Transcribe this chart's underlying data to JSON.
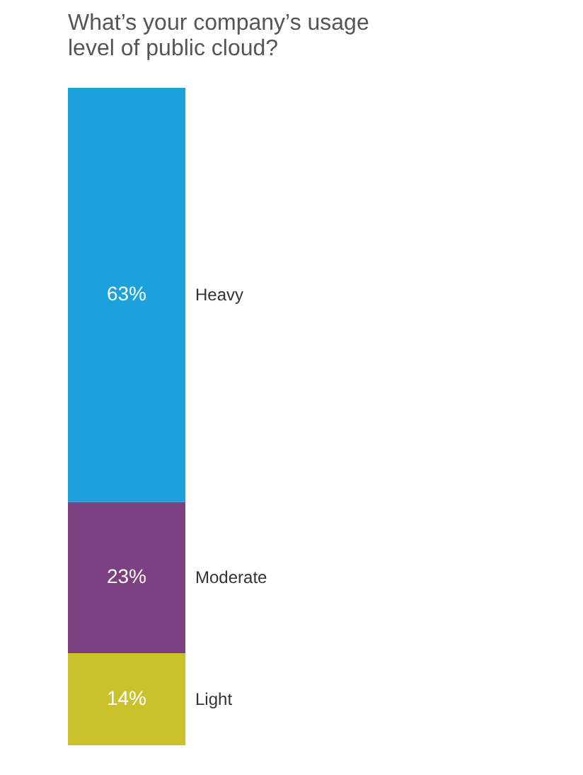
{
  "chart_data": {
    "type": "bar",
    "title": "What’s your company’s usage level of public cloud?",
    "categories": [
      null
    ],
    "stacked": true,
    "series": [
      {
        "name": "Light",
        "color": "#c9c22c",
        "values": [
          14
        ],
        "value_labels": [
          "14%"
        ]
      },
      {
        "name": "Moderate",
        "color": "#7c3f80",
        "values": [
          23
        ],
        "value_labels": [
          "23%"
        ]
      },
      {
        "name": "Heavy",
        "color": "#1ba1db",
        "values": [
          63
        ],
        "value_labels": [
          "63%"
        ]
      }
    ]
  }
}
